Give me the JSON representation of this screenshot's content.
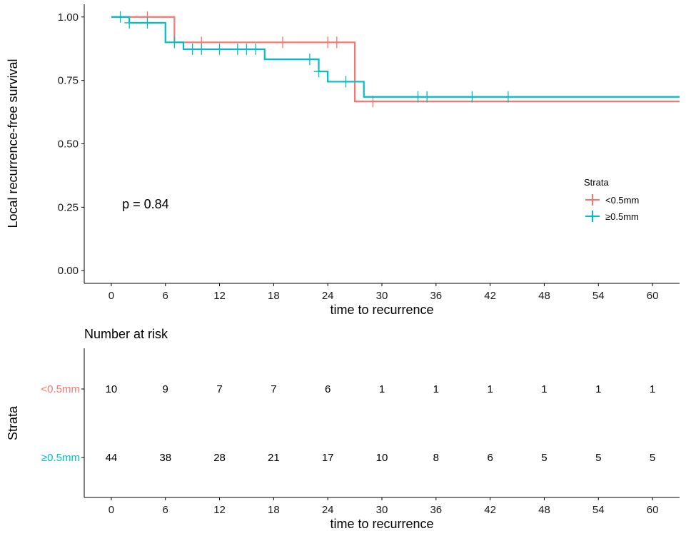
{
  "chart_data": [
    {
      "type": "line",
      "subtype": "kaplan-meier-step",
      "title": "",
      "xlabel": "time to recurrence",
      "ylabel": "Local recurrence-free survival",
      "xlim": [
        -3,
        63
      ],
      "ylim": [
        -0.05,
        1.05
      ],
      "x_ticks": [
        0,
        6,
        12,
        18,
        24,
        30,
        36,
        42,
        48,
        54,
        60
      ],
      "y_ticks": [
        0.0,
        0.25,
        0.5,
        0.75,
        1.0
      ],
      "y_tick_labels": [
        "0.00",
        "0.25",
        "0.50",
        "0.75",
        "1.00"
      ],
      "grid": false,
      "annotation": "p = 0.84",
      "annotation_position": {
        "x": 1.2,
        "y": 0.245
      },
      "legend": {
        "title": "Strata",
        "placement": "right",
        "entries": [
          "<0.5mm",
          "≥0.5mm"
        ]
      },
      "series": [
        {
          "name": "<0.5mm",
          "color": "#F8766D",
          "steps": [
            [
              0,
              1.0
            ],
            [
              7,
              0.9
            ],
            [
              27,
              0.667
            ],
            [
              63,
              0.667
            ]
          ],
          "censors": [
            [
              4,
              1.0
            ],
            [
              10,
              0.9
            ],
            [
              19,
              0.9
            ],
            [
              24,
              0.9
            ],
            [
              25,
              0.9
            ],
            [
              29,
              0.667
            ]
          ]
        },
        {
          "name": "≥0.5mm",
          "color": "#00BFC4",
          "steps": [
            [
              0,
              1.0
            ],
            [
              2,
              0.977
            ],
            [
              6,
              0.9
            ],
            [
              8,
              0.873
            ],
            [
              17,
              0.833
            ],
            [
              23,
              0.785
            ],
            [
              24,
              0.745
            ],
            [
              28,
              0.685
            ],
            [
              63,
              0.685
            ]
          ],
          "censors": [
            [
              1,
              1.0
            ],
            [
              2,
              0.977
            ],
            [
              4,
              0.977
            ],
            [
              7,
              0.9
            ],
            [
              9,
              0.873
            ],
            [
              10,
              0.873
            ],
            [
              12,
              0.873
            ],
            [
              14,
              0.873
            ],
            [
              15,
              0.873
            ],
            [
              16,
              0.873
            ],
            [
              22,
              0.833
            ],
            [
              23,
              0.785
            ],
            [
              26,
              0.745
            ],
            [
              34,
              0.685
            ],
            [
              35,
              0.685
            ],
            [
              40,
              0.685
            ],
            [
              44,
              0.685
            ]
          ]
        }
      ]
    },
    {
      "type": "table",
      "title": "Number at risk",
      "xlabel": "time to recurrence",
      "ylabel": "Strata",
      "x_ticks": [
        0,
        6,
        12,
        18,
        24,
        30,
        36,
        42,
        48,
        54,
        60
      ],
      "rows": [
        {
          "name": "<0.5mm",
          "color": "#F8766D",
          "values": [
            10,
            9,
            7,
            7,
            6,
            1,
            1,
            1,
            1,
            1,
            1
          ]
        },
        {
          "name": "≥0.5mm",
          "color": "#00BFC4",
          "values": [
            44,
            38,
            28,
            21,
            17,
            10,
            8,
            6,
            5,
            5,
            5
          ]
        }
      ]
    }
  ]
}
